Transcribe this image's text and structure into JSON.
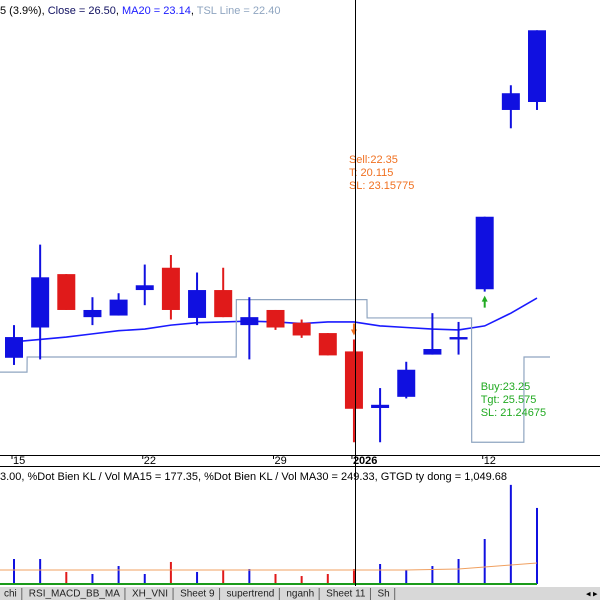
{
  "chart_data": [
    {
      "type": "candlestick",
      "header": [
        {
          "text": "5 (3.9%)",
          "color": "#000000"
        },
        {
          "text": "Close = 26.50",
          "color": "#101060"
        },
        {
          "text": "MA20 = 23.14",
          "color": "#1a1aff"
        },
        {
          "text": "TSL Line = 22.40",
          "color": "#8fa5c0"
        }
      ],
      "categories": [
        "15",
        null,
        null,
        null,
        null,
        "22",
        null,
        null,
        null,
        null,
        "29",
        null,
        null,
        "2026",
        null,
        null,
        null,
        null,
        "12",
        null,
        null
      ],
      "open": [
        22.39,
        22.77,
        23.44,
        22.9,
        22.92,
        23.24,
        23.52,
        22.89,
        23.24,
        22.8,
        22.99,
        22.83,
        22.7,
        22.47,
        21.76,
        21.9,
        22.43,
        22.62,
        23.25,
        25.5,
        25.6
      ],
      "high": [
        22.8,
        23.81,
        23.44,
        23.15,
        23.2,
        23.56,
        23.68,
        23.46,
        23.52,
        23.15,
        22.99,
        22.87,
        22.7,
        22.62,
        22.01,
        22.34,
        22.95,
        22.84,
        24.16,
        25.81,
        26.5
      ],
      "low": [
        22.3,
        22.37,
        22.99,
        22.8,
        22.92,
        23.05,
        22.87,
        22.8,
        22.9,
        22.37,
        22.74,
        22.64,
        22.42,
        21.33,
        21.33,
        21.88,
        22.43,
        22.43,
        23.22,
        25.27,
        25.5
      ],
      "close": [
        22.65,
        23.4,
        22.99,
        22.99,
        23.12,
        23.3,
        22.99,
        23.24,
        22.9,
        22.9,
        22.77,
        22.67,
        22.42,
        21.75,
        21.8,
        22.24,
        22.5,
        22.65,
        24.16,
        25.71,
        26.5
      ],
      "up_color": "#1010e0",
      "down_color": "#e01a1a",
      "ylim": [
        21.17,
        26.88
      ],
      "series": [
        {
          "style": "line",
          "color": "#1a1aff",
          "values": [
            22.59,
            22.62,
            22.65,
            22.69,
            22.73,
            22.75,
            22.8,
            22.83,
            22.84,
            22.85,
            22.84,
            22.82,
            22.84,
            22.84,
            22.79,
            22.77,
            22.75,
            22.74,
            22.79,
            22.95,
            23.14
          ]
        },
        {
          "style": "step",
          "color": "#8fa5c0",
          "values": [
            22.21,
            22.4,
            22.4,
            22.4,
            22.4,
            22.4,
            22.4,
            22.4,
            22.4,
            23.12,
            23.12,
            23.12,
            23.12,
            23.12,
            22.89,
            22.89,
            22.89,
            22.89,
            21.33,
            21.33,
            22.4
          ]
        },
        {
          "style": "sell",
          "color": "#f07020",
          "values": [
            null,
            null,
            null,
            null,
            null,
            null,
            null,
            null,
            null,
            null,
            null,
            null,
            null,
            22.35,
            null,
            null,
            null,
            null,
            null,
            null,
            null
          ],
          "annotation": [
            "Sell:22.35",
            "T: 20.115",
            "SL: 23.15775"
          ]
        },
        {
          "style": "buy",
          "color": "#22aa22",
          "values": [
            null,
            null,
            null,
            null,
            null,
            null,
            null,
            null,
            null,
            null,
            null,
            null,
            null,
            null,
            null,
            null,
            null,
            null,
            23.25,
            null,
            null
          ],
          "annotation": [
            "Buy:23.25",
            "Tgt: 25.575",
            "SL: 21.24675"
          ]
        }
      ]
    },
    {
      "type": "volume",
      "header": [
        {
          "text": "3.00, %Dot Bien KL / Vol MA15 = 177.35, %Dot Bien KL / Vol MA30 = 249.33, GTGD ty dong = 1,049.68",
          "color": "#000000"
        }
      ],
      "values": [
        345,
        345,
        166,
        138,
        248,
        138,
        304,
        166,
        193,
        207,
        138,
        110,
        138,
        207,
        276,
        193,
        248,
        345,
        621,
        1368,
        1049.68
      ],
      "ylim": [
        0,
        1601
      ],
      "series": [
        {
          "color": "#f0a060",
          "values": [
            193,
            193,
            193,
            193,
            193,
            193,
            193,
            193,
            193,
            193,
            193,
            193,
            193,
            193,
            193,
            193,
            200,
            207,
            235,
            262,
            290
          ]
        },
        {
          "color": "#1a9a1a",
          "values": [
            0,
            0,
            0,
            0,
            0,
            0,
            0,
            0,
            0,
            0,
            0,
            0,
            0,
            0,
            0,
            0,
            0,
            0,
            0,
            0,
            0
          ]
        }
      ]
    }
  ],
  "tabs": [
    "chi",
    "RSI_MACD_BB_MA",
    "XH_VNI",
    "Sheet 9",
    "supertrend",
    "nganh",
    "Sheet 11",
    "Sh"
  ]
}
